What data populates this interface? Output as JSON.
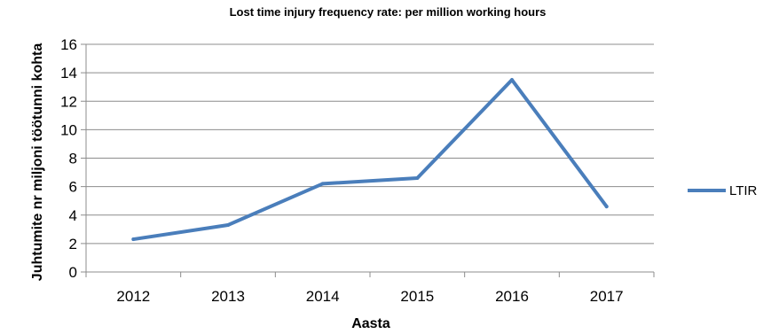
{
  "chart_data": {
    "type": "line",
    "title": "Lost time injury frequency rate: per million working hours",
    "xlabel": "Aasta",
    "ylabel": "Juhtumite nr miljoni töötunni kohta",
    "categories": [
      "2012",
      "2013",
      "2014",
      "2015",
      "2016",
      "2017"
    ],
    "series": [
      {
        "name": "LTIR",
        "values": [
          2.3,
          3.3,
          6.2,
          6.6,
          13.5,
          4.6
        ],
        "color": "#4a7ebb"
      }
    ],
    "ylim": [
      0,
      16
    ],
    "yticks": [
      0,
      2,
      4,
      6,
      8,
      10,
      12,
      14,
      16
    ],
    "grid": true,
    "legend": "right"
  }
}
